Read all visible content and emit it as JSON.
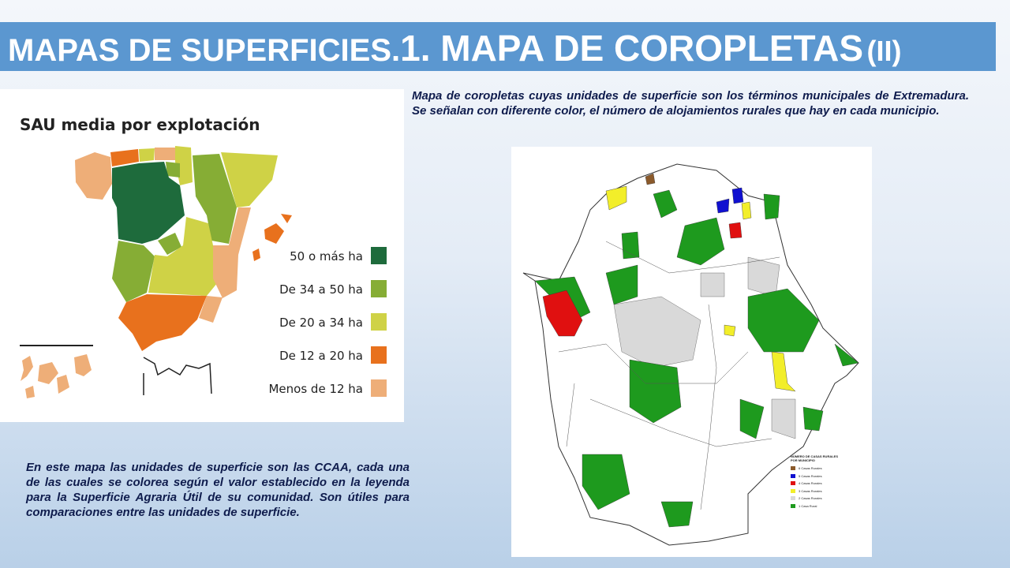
{
  "header": {
    "title_part1": "MAPAS DE SUPERFICIES.",
    "title_part2": "1. MAPA DE COROPLETAS",
    "title_part3": "(II)"
  },
  "caption_right": "Mapa de coropletas cuyas unidades de superficie son los términos municipales de Extremadura. Se señalan con diferente color, el número de alojamientos rurales que hay en cada municipio.",
  "caption_left": "En este mapa las unidades de superficie son las CCAA, cada una de las cuales se colorea según el valor establecido en la leyenda para la Superficie Agraria Útil de su comunidad. Son útiles para comparaciones entre las unidades de superficie.",
  "spain_map": {
    "title": "SAU media por explotación",
    "legend": [
      {
        "label": "50 o más ha",
        "color": "#1e6b3c"
      },
      {
        "label": "De 34 a 50 ha",
        "color": "#86ad35"
      },
      {
        "label": "De 20 a 34 ha",
        "color": "#cfd246"
      },
      {
        "label": "De 12 a 20 ha",
        "color": "#e8711d"
      },
      {
        "label": "Menos de 12 ha",
        "color": "#eeae78"
      }
    ]
  },
  "extremadura_map": {
    "legend_title": "NÚMERO DE CASAS RURALES POR MUNICIPIO",
    "legend": [
      {
        "label": "6 Casas Rurales",
        "color": "#8b5a2b"
      },
      {
        "label": "5 Casas Rurales",
        "color": "#1010d0"
      },
      {
        "label": "4 Casas Rurales",
        "color": "#e01010"
      },
      {
        "label": "3 Casas Rurales",
        "color": "#f2ee2a"
      },
      {
        "label": "2 Casas Rurales",
        "color": "#d9d9d9"
      },
      {
        "label": "1 Casa Rural",
        "color": "#1e9a1e"
      }
    ]
  }
}
